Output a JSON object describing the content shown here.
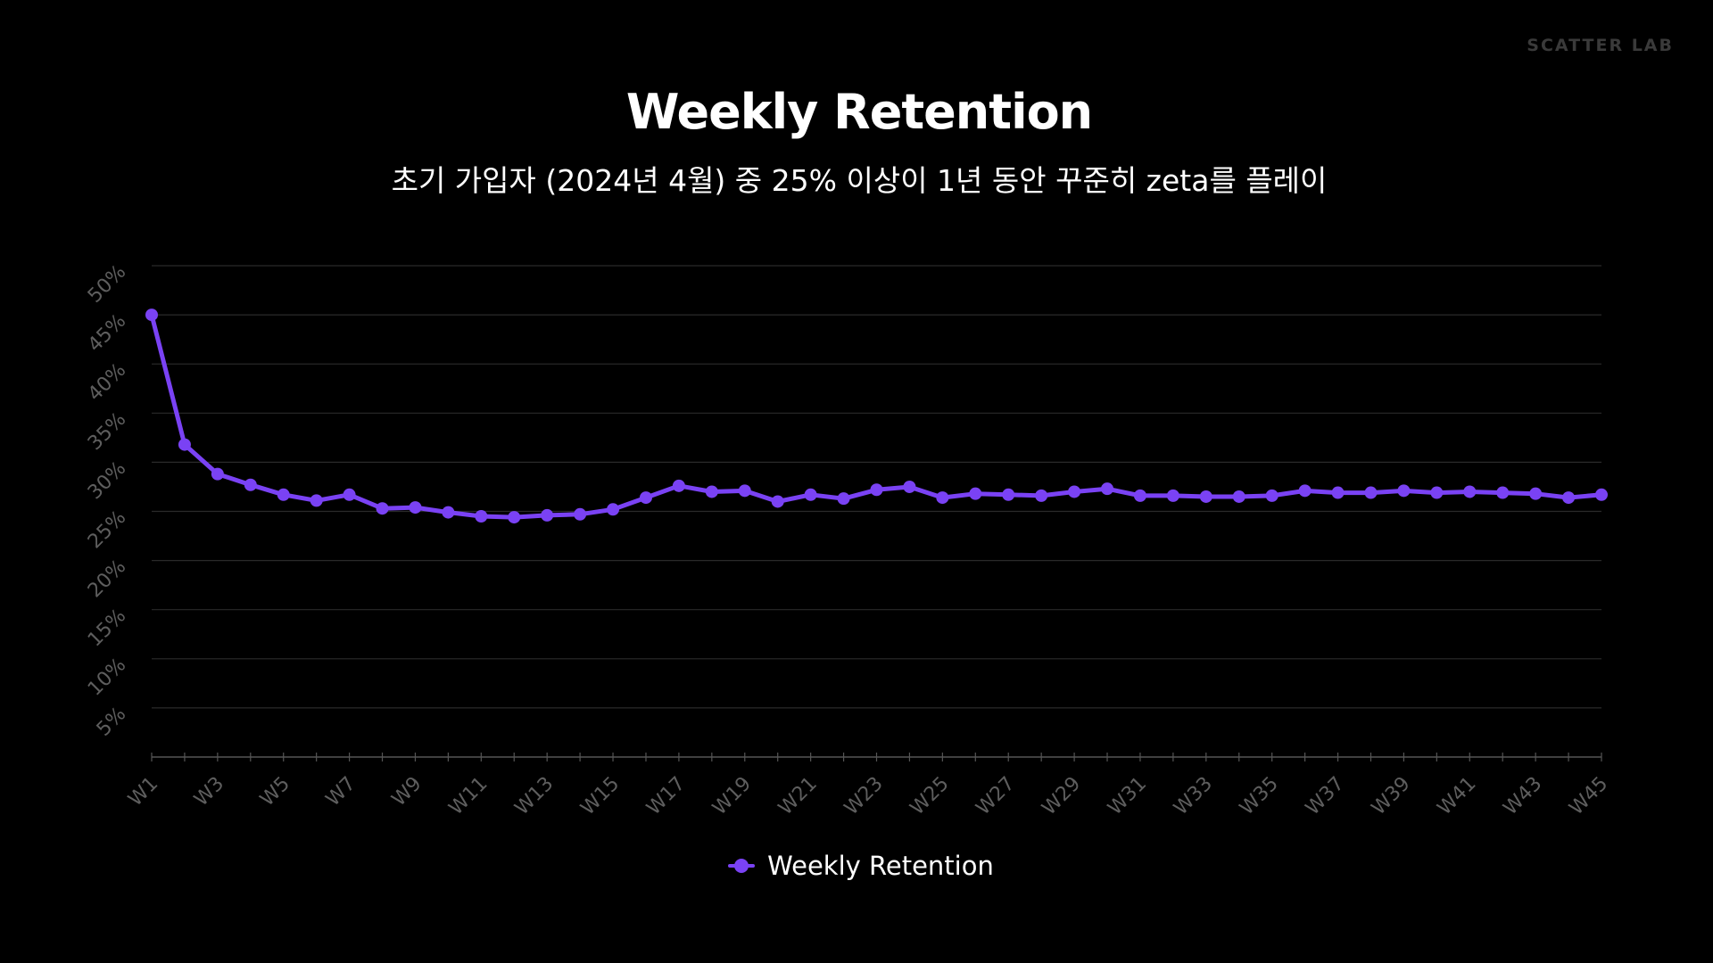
{
  "brand": "SCATTER LAB",
  "colors": {
    "background": "#000000",
    "series": "#7a42f4",
    "grid": "#2a2a2a",
    "axis": "#555555",
    "tick_text": "#5e5e5e",
    "brand_text": "#3a3a3a"
  },
  "chart_data": {
    "type": "line",
    "title": "Weekly Retention",
    "subtitle": "초기 가입자 (2024년 4월) 중 25% 이상이 1년 동안 꾸준히 zeta를 플레이",
    "xlabel": "",
    "ylabel": "",
    "ylim": [
      0,
      50
    ],
    "yticks": [
      5,
      10,
      15,
      20,
      25,
      30,
      35,
      40,
      45,
      50
    ],
    "ytick_labels": [
      "5%",
      "10%",
      "15%",
      "20%",
      "25%",
      "30%",
      "35%",
      "40%",
      "45%",
      "50%"
    ],
    "grid": true,
    "legend_position": "bottom-center",
    "categories": [
      "W1",
      "W2",
      "W3",
      "W4",
      "W5",
      "W6",
      "W7",
      "W8",
      "W9",
      "W10",
      "W11",
      "W12",
      "W13",
      "W14",
      "W15",
      "W16",
      "W17",
      "W18",
      "W19",
      "W20",
      "W21",
      "W22",
      "W23",
      "W24",
      "W25",
      "W26",
      "W27",
      "W28",
      "W29",
      "W30",
      "W31",
      "W32",
      "W33",
      "W34",
      "W35",
      "W36",
      "W37",
      "W38",
      "W39",
      "W40",
      "W41",
      "W42",
      "W43",
      "W44",
      "W45"
    ],
    "xtick_labels": [
      "W1",
      "W3",
      "W5",
      "W7",
      "W9",
      "W11",
      "W13",
      "W15",
      "W17",
      "W19",
      "W21",
      "W23",
      "W25",
      "W27",
      "W29",
      "W31",
      "W33",
      "W35",
      "W37",
      "W39",
      "W41",
      "W43",
      "W45"
    ],
    "series": [
      {
        "name": "Weekly Retention",
        "color": "#7a42f4",
        "values": [
          45.0,
          31.8,
          28.8,
          27.7,
          26.7,
          26.1,
          26.7,
          25.3,
          25.4,
          24.9,
          24.5,
          24.4,
          24.6,
          24.7,
          25.2,
          26.4,
          27.6,
          27.0,
          27.1,
          26.0,
          26.7,
          26.3,
          27.2,
          27.5,
          26.4,
          26.8,
          26.7,
          26.6,
          27.0,
          27.3,
          26.6,
          26.6,
          26.5,
          26.5,
          26.6,
          27.1,
          26.9,
          26.9,
          27.1,
          26.9,
          27.0,
          26.9,
          26.8,
          26.4,
          26.7
        ]
      }
    ]
  }
}
